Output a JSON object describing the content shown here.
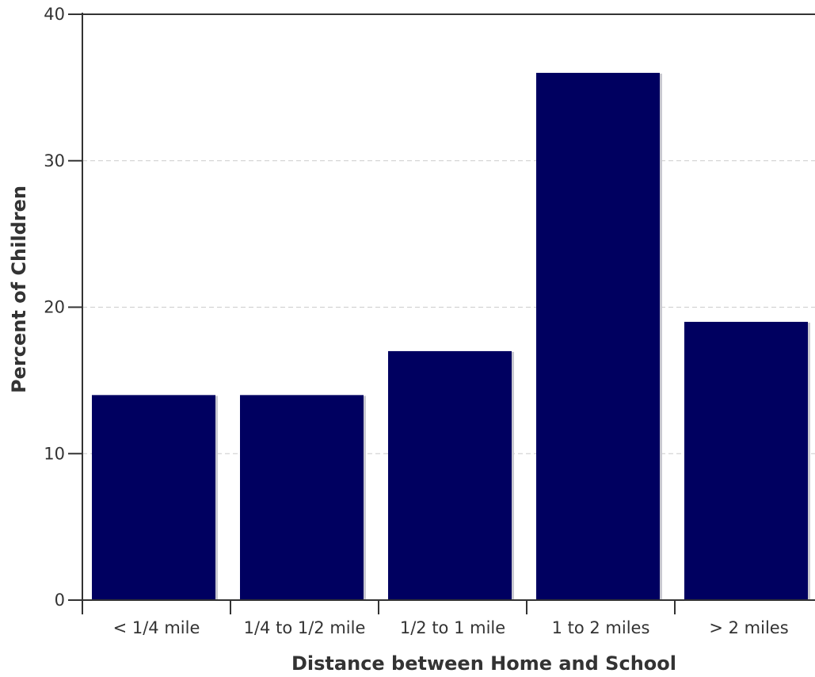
{
  "chart_data": {
    "type": "bar",
    "categories": [
      "< 1/4 mile",
      "1/4 to 1/2 mile",
      "1/2 to 1 mile",
      "1 to 2 miles",
      "> 2 miles"
    ],
    "values": [
      14,
      14,
      17,
      36,
      19
    ],
    "xlabel": "Distance between Home and School",
    "ylabel": "Percent of Children",
    "ylim": [
      0,
      40
    ],
    "yticks": [
      0,
      10,
      20,
      30,
      40
    ],
    "grid": true,
    "bar_color": "#000060",
    "axis_color": "#333333",
    "grid_color": "#cccccc"
  }
}
